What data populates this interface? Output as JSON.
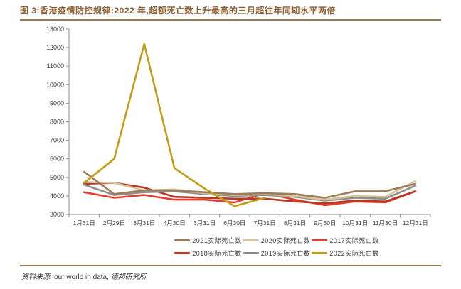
{
  "header": {
    "title": "图 3:香港疫情防控规律:2022 年,超额死亡数上升最高的三月超往年同期水平两倍"
  },
  "footer": {
    "label": "资料来源:",
    "source": "our world in data,",
    "org": "德邦研究所"
  },
  "colors": {
    "title_accent": "#8C5F33",
    "divider": "#9A7B55",
    "axis": "#8C8C8C",
    "tick_text": "#3C3C3C"
  },
  "chart_data": {
    "type": "line",
    "title": "图 3:香港疫情防控规律:2022 年,超额死亡数上升最高的三月超往年同期水平两倍",
    "xlabel": "",
    "ylabel": "",
    "ylim": [
      3000,
      13000
    ],
    "ytick_step": 1000,
    "grid": false,
    "legend_position": "bottom",
    "categories": [
      "1月31日",
      "2月29日",
      "3月31日",
      "4月30日",
      "5月31日",
      "6月30日",
      "7月31日",
      "8月31日",
      "9月30日",
      "10月31日",
      "11月30日",
      "12月31日"
    ],
    "series": [
      {
        "name": "2021实际死亡数",
        "color": "#9D7D58",
        "values": [
          5300,
          4100,
          4300,
          4300,
          4200,
          4100,
          4150,
          4100,
          3900,
          4250,
          4250,
          4650
        ]
      },
      {
        "name": "2020实际死亡数",
        "color": "#D8C59E",
        "values": [
          4750,
          4700,
          4300,
          4350,
          4150,
          4050,
          4100,
          4000,
          3800,
          4000,
          3950,
          4800
        ]
      },
      {
        "name": "2017实际死亡数",
        "color": "#E53E2E",
        "values": [
          4200,
          3900,
          4050,
          3800,
          3800,
          3650,
          4150,
          3800,
          3500,
          3700,
          3650,
          4250
        ]
      },
      {
        "name": "2018实际死亡数",
        "color": "#B43A23",
        "values": [
          4650,
          4700,
          4450,
          3950,
          3900,
          3850,
          3850,
          3700,
          3600,
          3750,
          3700,
          4250
        ]
      },
      {
        "name": "2019实际死亡数",
        "color": "#8F8F8F",
        "values": [
          4600,
          4050,
          4200,
          4250,
          4100,
          4000,
          4050,
          3950,
          3750,
          3900,
          3850,
          4550
        ]
      },
      {
        "name": "2022实际死亡数",
        "color": "#C49D17",
        "values": [
          4700,
          6000,
          12200,
          5500,
          4400,
          3450,
          3900,
          null,
          null,
          null,
          null,
          null
        ]
      }
    ]
  }
}
